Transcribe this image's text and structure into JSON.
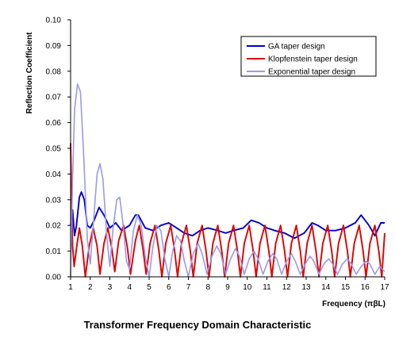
{
  "caption": "Transformer Frequency Domain Characteristic",
  "chart_data": {
    "type": "line",
    "xlabel": "Frequency (πβL)",
    "ylabel": "Reflection Coefficient",
    "xlim": [
      1,
      17
    ],
    "ylim": [
      0,
      0.1
    ],
    "xticks": [
      1,
      2,
      3,
      4,
      5,
      6,
      7,
      8,
      9,
      10,
      11,
      12,
      13,
      14,
      15,
      16,
      17
    ],
    "yticks": [
      "0.00",
      "0.01",
      "0.02",
      "0.03",
      "0.04",
      "0.05",
      "0.06",
      "0.07",
      "0.08",
      "0.09",
      "0.10"
    ],
    "grid": false,
    "legend_position": "top-right",
    "series": [
      {
        "name": "GA taper design",
        "color": "#0000cc",
        "points": [
          [
            1.0,
            0.02
          ],
          [
            1.1,
            0.026
          ],
          [
            1.2,
            0.016
          ],
          [
            1.3,
            0.02
          ],
          [
            1.45,
            0.031
          ],
          [
            1.55,
            0.033
          ],
          [
            1.7,
            0.03
          ],
          [
            1.85,
            0.02
          ],
          [
            2.0,
            0.019
          ],
          [
            2.2,
            0.022
          ],
          [
            2.45,
            0.027
          ],
          [
            2.7,
            0.024
          ],
          [
            3.0,
            0.019
          ],
          [
            3.3,
            0.021
          ],
          [
            3.6,
            0.018
          ],
          [
            4.0,
            0.02
          ],
          [
            4.3,
            0.024
          ],
          [
            4.45,
            0.024
          ],
          [
            4.8,
            0.019
          ],
          [
            5.2,
            0.018
          ],
          [
            5.6,
            0.02
          ],
          [
            6.0,
            0.021
          ],
          [
            6.4,
            0.019
          ],
          [
            6.8,
            0.017
          ],
          [
            7.2,
            0.016
          ],
          [
            7.6,
            0.018
          ],
          [
            8.0,
            0.019
          ],
          [
            8.5,
            0.018
          ],
          [
            8.9,
            0.017
          ],
          [
            9.3,
            0.018
          ],
          [
            9.8,
            0.019
          ],
          [
            10.2,
            0.022
          ],
          [
            10.6,
            0.021
          ],
          [
            11.0,
            0.019
          ],
          [
            11.4,
            0.018
          ],
          [
            11.9,
            0.017
          ],
          [
            12.4,
            0.015
          ],
          [
            12.9,
            0.017
          ],
          [
            13.3,
            0.021
          ],
          [
            13.6,
            0.02
          ],
          [
            14.0,
            0.018
          ],
          [
            14.5,
            0.018
          ],
          [
            15.0,
            0.019
          ],
          [
            15.5,
            0.021
          ],
          [
            15.8,
            0.024
          ],
          [
            16.2,
            0.02
          ],
          [
            16.5,
            0.016
          ],
          [
            16.8,
            0.021
          ],
          [
            17.0,
            0.021
          ]
        ]
      },
      {
        "name": "Klopfenstein taper design",
        "color": "#dd0000",
        "points": [
          [
            1.0,
            0.052
          ],
          [
            1.05,
            0.03
          ],
          [
            1.1,
            0.012
          ],
          [
            1.18,
            0.004
          ],
          [
            1.3,
            0.011
          ],
          [
            1.45,
            0.019
          ],
          [
            1.6,
            0.012
          ],
          [
            1.75,
            0.0
          ],
          [
            1.95,
            0.012
          ],
          [
            2.15,
            0.019
          ],
          [
            2.35,
            0.012
          ],
          [
            2.5,
            0.001
          ],
          [
            2.7,
            0.013
          ],
          [
            2.9,
            0.019
          ],
          [
            3.1,
            0.011
          ],
          [
            3.25,
            0.002
          ],
          [
            3.45,
            0.014
          ],
          [
            3.7,
            0.02
          ],
          [
            3.9,
            0.011
          ],
          [
            4.05,
            0.001
          ],
          [
            4.3,
            0.014
          ],
          [
            4.5,
            0.02
          ],
          [
            4.7,
            0.01
          ],
          [
            4.85,
            0.001
          ],
          [
            5.05,
            0.013
          ],
          [
            5.3,
            0.02
          ],
          [
            5.5,
            0.01
          ],
          [
            5.65,
            0.0
          ],
          [
            5.85,
            0.013
          ],
          [
            6.1,
            0.02
          ],
          [
            6.3,
            0.01
          ],
          [
            6.45,
            0.0
          ],
          [
            6.65,
            0.013
          ],
          [
            6.9,
            0.02
          ],
          [
            7.1,
            0.01
          ],
          [
            7.25,
            0.0
          ],
          [
            7.45,
            0.013
          ],
          [
            7.7,
            0.02
          ],
          [
            7.9,
            0.01
          ],
          [
            8.05,
            0.0
          ],
          [
            8.25,
            0.013
          ],
          [
            8.5,
            0.02
          ],
          [
            8.7,
            0.01
          ],
          [
            8.85,
            0.0
          ],
          [
            9.05,
            0.013
          ],
          [
            9.3,
            0.02
          ],
          [
            9.5,
            0.01
          ],
          [
            9.65,
            0.0
          ],
          [
            9.85,
            0.013
          ],
          [
            10.1,
            0.02
          ],
          [
            10.3,
            0.01
          ],
          [
            10.45,
            0.0
          ],
          [
            10.65,
            0.013
          ],
          [
            10.9,
            0.02
          ],
          [
            11.1,
            0.01
          ],
          [
            11.25,
            0.0
          ],
          [
            11.45,
            0.013
          ],
          [
            11.7,
            0.02
          ],
          [
            11.9,
            0.01
          ],
          [
            12.05,
            0.0
          ],
          [
            12.25,
            0.013
          ],
          [
            12.5,
            0.02
          ],
          [
            12.7,
            0.01
          ],
          [
            12.85,
            0.0
          ],
          [
            13.05,
            0.013
          ],
          [
            13.3,
            0.02
          ],
          [
            13.5,
            0.01
          ],
          [
            13.65,
            0.0
          ],
          [
            13.85,
            0.013
          ],
          [
            14.1,
            0.02
          ],
          [
            14.3,
            0.01
          ],
          [
            14.45,
            0.0
          ],
          [
            14.65,
            0.013
          ],
          [
            14.9,
            0.02
          ],
          [
            15.1,
            0.01
          ],
          [
            15.25,
            0.0
          ],
          [
            15.45,
            0.013
          ],
          [
            15.7,
            0.02
          ],
          [
            15.9,
            0.01
          ],
          [
            16.05,
            0.0
          ],
          [
            16.25,
            0.013
          ],
          [
            16.5,
            0.02
          ],
          [
            16.7,
            0.01
          ],
          [
            16.85,
            0.0
          ],
          [
            17.0,
            0.017
          ]
        ]
      },
      {
        "name": "Exponential taper design",
        "color": "#9999ee",
        "points": [
          [
            1.0,
            0.0
          ],
          [
            1.1,
            0.038
          ],
          [
            1.2,
            0.065
          ],
          [
            1.35,
            0.075
          ],
          [
            1.5,
            0.072
          ],
          [
            1.65,
            0.05
          ],
          [
            1.85,
            0.015
          ],
          [
            2.0,
            0.005
          ],
          [
            2.15,
            0.02
          ],
          [
            2.35,
            0.04
          ],
          [
            2.5,
            0.044
          ],
          [
            2.65,
            0.038
          ],
          [
            2.85,
            0.015
          ],
          [
            3.0,
            0.004
          ],
          [
            3.15,
            0.018
          ],
          [
            3.35,
            0.03
          ],
          [
            3.5,
            0.031
          ],
          [
            3.65,
            0.022
          ],
          [
            3.85,
            0.006
          ],
          [
            4.0,
            0.003
          ],
          [
            4.2,
            0.018
          ],
          [
            4.4,
            0.024
          ],
          [
            4.6,
            0.02
          ],
          [
            4.8,
            0.008
          ],
          [
            5.0,
            0.0
          ],
          [
            5.2,
            0.012
          ],
          [
            5.4,
            0.02
          ],
          [
            5.6,
            0.018
          ],
          [
            5.8,
            0.007
          ],
          [
            6.0,
            0.0
          ],
          [
            6.2,
            0.01
          ],
          [
            6.4,
            0.016
          ],
          [
            6.6,
            0.014
          ],
          [
            6.8,
            0.006
          ],
          [
            7.0,
            0.0
          ],
          [
            7.25,
            0.009
          ],
          [
            7.5,
            0.013
          ],
          [
            7.7,
            0.009
          ],
          [
            7.95,
            0.001
          ],
          [
            8.2,
            0.008
          ],
          [
            8.45,
            0.012
          ],
          [
            8.65,
            0.009
          ],
          [
            8.9,
            0.001
          ],
          [
            9.15,
            0.007
          ],
          [
            9.4,
            0.011
          ],
          [
            9.6,
            0.008
          ],
          [
            9.85,
            0.001
          ],
          [
            10.1,
            0.007
          ],
          [
            10.35,
            0.01
          ],
          [
            10.55,
            0.007
          ],
          [
            10.8,
            0.001
          ],
          [
            11.05,
            0.006
          ],
          [
            11.3,
            0.009
          ],
          [
            11.5,
            0.007
          ],
          [
            11.75,
            0.001
          ],
          [
            12.0,
            0.006
          ],
          [
            12.25,
            0.009
          ],
          [
            12.45,
            0.006
          ],
          [
            12.7,
            0.001
          ],
          [
            12.95,
            0.005
          ],
          [
            13.2,
            0.008
          ],
          [
            13.4,
            0.006
          ],
          [
            13.65,
            0.001
          ],
          [
            13.9,
            0.005
          ],
          [
            14.15,
            0.007
          ],
          [
            14.35,
            0.005
          ],
          [
            14.6,
            0.001
          ],
          [
            14.85,
            0.005
          ],
          [
            15.1,
            0.007
          ],
          [
            15.3,
            0.005
          ],
          [
            15.55,
            0.001
          ],
          [
            15.8,
            0.004
          ],
          [
            16.05,
            0.006
          ],
          [
            16.25,
            0.005
          ],
          [
            16.5,
            0.001
          ],
          [
            16.75,
            0.004
          ],
          [
            17.0,
            0.002
          ]
        ]
      }
    ]
  }
}
